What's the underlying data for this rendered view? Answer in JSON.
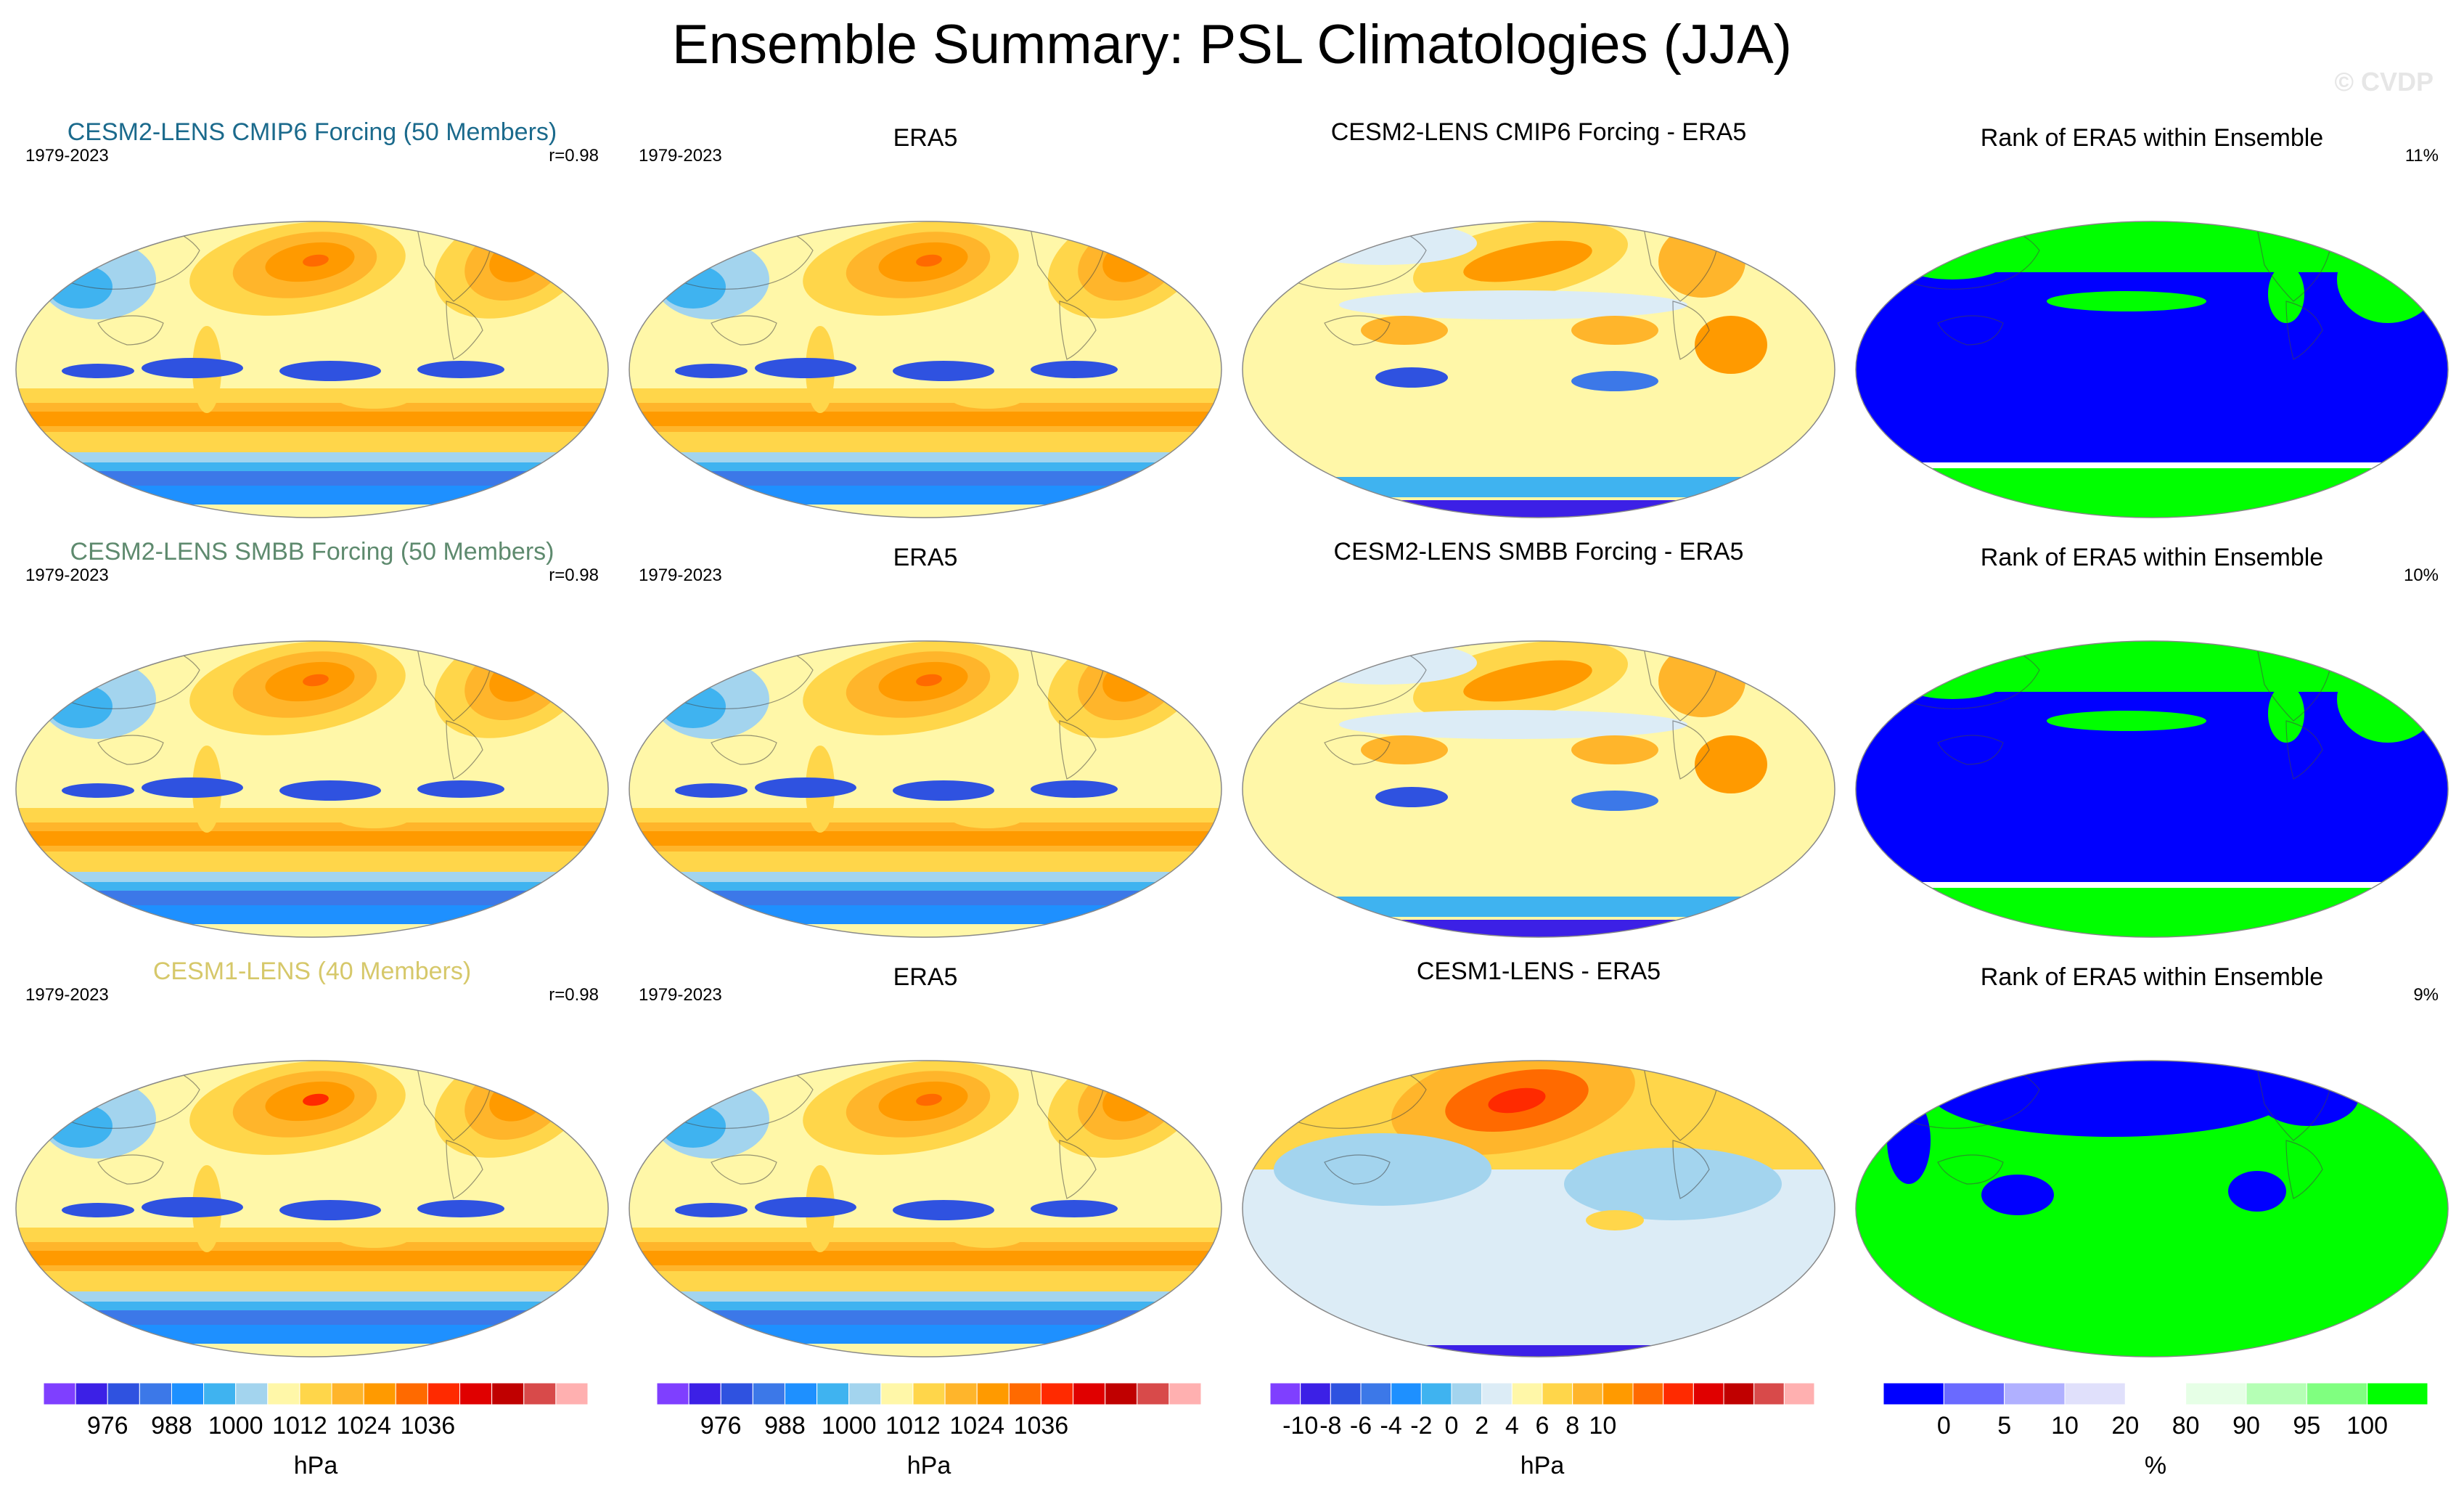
{
  "title": "Ensemble Summary: PSL Climatologies (JJA)",
  "copyright": "© CVDP",
  "palettes": {
    "climo": [
      "#7f3fff",
      "#3c20e6",
      "#2f52e0",
      "#3c78e8",
      "#1e90ff",
      "#3fb3f0",
      "#a3d4ee",
      "#fff7a8",
      "#ffd64a",
      "#ffb52b",
      "#ff9a00",
      "#ff6a00",
      "#ff2a00",
      "#e00000",
      "#c00000",
      "#d84a4a",
      "#ffb0b0"
    ],
    "diff": [
      "#7f3fff",
      "#3c20e6",
      "#2f52e0",
      "#3c78e8",
      "#1e90ff",
      "#3fb3f0",
      "#a3d4ee",
      "#dcecf6",
      "#fff7a8",
      "#ffd64a",
      "#ffb52b",
      "#ff9a00",
      "#ff6a00",
      "#ff2a00",
      "#e00000",
      "#c00000",
      "#d84a4a",
      "#ffb0b0"
    ],
    "rank": [
      "#0000ff",
      "#6a6aff",
      "#b0b0ff",
      "#e0e0fb",
      "#ffffff",
      "#e6ffe6",
      "#b5ffb5",
      "#80ff80",
      "#00ff00"
    ],
    "title_colors": {
      "cmip6": "#1b6a8c",
      "smbb": "#5e8a6e",
      "cesm1": "#d6c86a"
    }
  },
  "rows": [
    {
      "ens_title": "CESM2-LENS CMIP6 Forcing (50 Members)",
      "years": "1979-2023",
      "r": "r=0.98",
      "obs_title": "ERA5",
      "obs_years": "1979-2023",
      "diff_title": "CESM2-LENS CMIP6 Forcing - ERA5",
      "rank_title": "Rank of ERA5 within Ensemble",
      "rank_pct": "11%"
    },
    {
      "ens_title": "CESM2-LENS SMBB Forcing (50 Members)",
      "years": "1979-2023",
      "r": "r=0.98",
      "obs_title": "ERA5",
      "obs_years": "1979-2023",
      "diff_title": "CESM2-LENS SMBB Forcing - ERA5",
      "rank_title": "Rank of ERA5 within Ensemble",
      "rank_pct": "10%"
    },
    {
      "ens_title": "CESM1-LENS (40 Members)",
      "years": "1979-2023",
      "r": "r=0.98",
      "obs_title": "ERA5",
      "obs_years": "1979-2023",
      "diff_title": "CESM1-LENS - ERA5",
      "rank_title": "Rank of ERA5 within Ensemble",
      "rank_pct": "9%"
    }
  ],
  "chart_data": [
    {
      "type": "heatmap",
      "title": "Ensemble Summary: PSL Climatologies (JJA)",
      "projection": "Robinson (global, Pacific-centred)",
      "variable": "PSL",
      "season": "JJA"
    }
  ],
  "colorbars": {
    "climo": {
      "ticks": [
        "976",
        "988",
        "1000",
        "1012",
        "1024",
        "1036"
      ],
      "label": "hPa"
    },
    "diff": {
      "ticks": [
        "-10",
        "-8",
        "-6",
        "-4",
        "-2",
        "0",
        "2",
        "4",
        "6",
        "8",
        "10"
      ],
      "label": "hPa"
    },
    "rank": {
      "ticks": [
        "0",
        "5",
        "10",
        "20",
        "80",
        "90",
        "95",
        "100"
      ],
      "label": "%"
    }
  }
}
